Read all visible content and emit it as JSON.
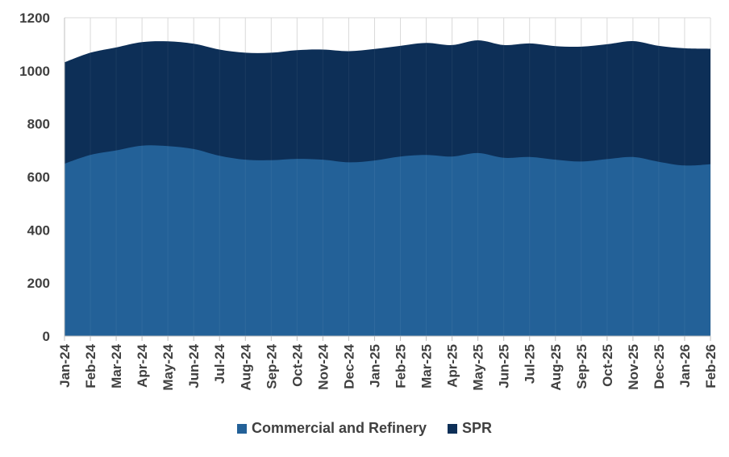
{
  "chart_data": {
    "type": "area",
    "stacked": true,
    "categories": [
      "Jan-24",
      "Feb-24",
      "Mar-24",
      "Apr-24",
      "May-24",
      "Jun-24",
      "Jul-24",
      "Aug-24",
      "Sep-24",
      "Oct-24",
      "Nov-24",
      "Dec-24",
      "Jan-25",
      "Feb-25",
      "Mar-25",
      "Apr-25",
      "May-25",
      "Jun-25",
      "Jul-25",
      "Aug-25",
      "Sep-25",
      "Oct-25",
      "Nov-25",
      "Dec-25",
      "Jan-26",
      "Feb-26"
    ],
    "series": [
      {
        "name": "Commercial and Refinery",
        "color": "#236198",
        "values": [
          650,
          683,
          700,
          718,
          716,
          705,
          680,
          665,
          663,
          668,
          665,
          655,
          662,
          677,
          683,
          677,
          690,
          672,
          675,
          665,
          658,
          667,
          675,
          657,
          643,
          648
        ]
      },
      {
        "name": "SPR",
        "color": "#0d2f57",
        "values": [
          382,
          385,
          388,
          390,
          395,
          397,
          400,
          403,
          405,
          410,
          415,
          419,
          420,
          417,
          422,
          420,
          425,
          425,
          428,
          428,
          433,
          433,
          437,
          437,
          442,
          435
        ]
      }
    ],
    "ylim": [
      0,
      1200
    ],
    "yticks": [
      0,
      200,
      400,
      600,
      800,
      1000,
      1200
    ],
    "grid": true,
    "legend_position": "bottom",
    "title": "",
    "xlabel": "",
    "ylabel": ""
  }
}
